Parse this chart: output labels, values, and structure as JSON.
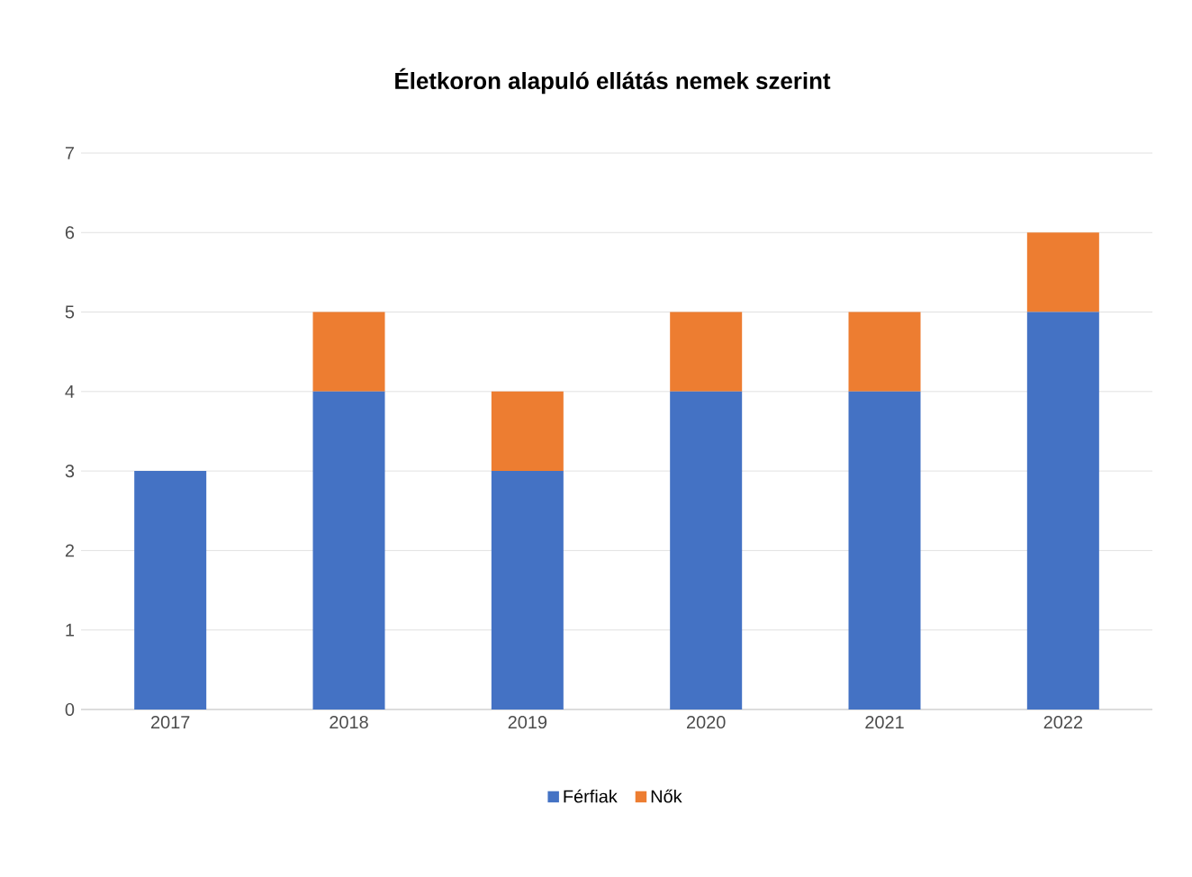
{
  "chart_data": {
    "type": "bar",
    "title": "Életkoron alapuló ellátás nemek szerint",
    "categories": [
      "2017",
      "2018",
      "2019",
      "2020",
      "2021",
      "2022"
    ],
    "series": [
      {
        "name": "Férfiak",
        "color": "#4472c4",
        "values": [
          3,
          4,
          3,
          4,
          4,
          5
        ]
      },
      {
        "name": "Nők",
        "color": "#ed7d31",
        "values": [
          0,
          1,
          1,
          1,
          1,
          1
        ]
      }
    ],
    "stacked": true,
    "ylim": [
      0,
      7
    ],
    "yticks": [
      0,
      1,
      2,
      3,
      4,
      5,
      6,
      7
    ],
    "grid": "y",
    "legend": "bottom"
  }
}
